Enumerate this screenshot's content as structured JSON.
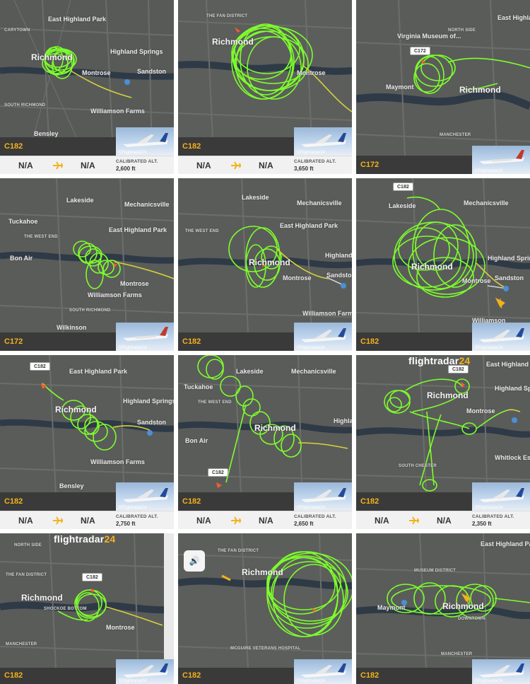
{
  "tiles": [
    {
      "aircraft": "C182",
      "info": {
        "left": "N/A",
        "right": "N/A",
        "alt_label": "CALIBRATED ALT.",
        "alt": "2,600 ft"
      },
      "credit": "©Flightradar24",
      "labels": [
        "East Highland Park",
        "Richmond",
        "Highland Springs",
        "Sandston",
        "Williamson Farms",
        "Montrose",
        "Bensley",
        "CARYTOWN",
        "SOUTH RICHMOND"
      ]
    },
    {
      "aircraft": "C182",
      "info": {
        "left": "N/A",
        "right": "N/A",
        "alt_label": "CALIBRATED ALT.",
        "alt": "3,650 ft"
      },
      "credit": "©Flightradar24",
      "labels": [
        "Richmond",
        "Montrose",
        "THE FAN DISTRICT"
      ]
    },
    {
      "aircraft": "C172",
      "callout": "C172",
      "credit": "©Flightradar24",
      "labels": [
        "Virginia Museum of...",
        "Richmond",
        "Maymont",
        "MANCHESTER",
        "NORTH SIDE",
        "East Highland"
      ]
    },
    {
      "aircraft": "C172",
      "credit": "©Flightradar24",
      "labels": [
        "Lakeside",
        "Mechanicsville",
        "Tuckahoe",
        "THE WEST END",
        "East Highland Park",
        "Montrose",
        "Bon Air",
        "SOUTH RICHMOND",
        "Williamson Farms",
        "Wilkinson"
      ]
    },
    {
      "aircraft": "C182",
      "credit": "©Flightradar24",
      "labels": [
        "Lakeside",
        "Mechanicsville",
        "THE WEST END",
        "East Highland Park",
        "Richmond",
        "Highland Springs",
        "Sandston",
        "Montrose",
        "Williamson Farms"
      ]
    },
    {
      "aircraft": "C182",
      "callout": "C182",
      "credit": "©Flightradar24",
      "labels": [
        "Lakeside",
        "Mechanicsville",
        "Richmond",
        "Highland Springs",
        "Sandston",
        "Montrose",
        "Williamson"
      ]
    },
    {
      "aircraft": "C182",
      "callout": "C182",
      "info": {
        "left": "N/A",
        "right": "N/A",
        "alt_label": "CALIBRATED ALT.",
        "alt": "2,750 ft"
      },
      "credit": "©Flightradar24",
      "labels": [
        "East Highland Park",
        "Richmond",
        "Highland Springs",
        "Sandston",
        "Williamson Farms",
        "Bensley"
      ]
    },
    {
      "aircraft": "C182",
      "callout": "C182",
      "info": {
        "left": "N/A",
        "right": "N/A",
        "alt_label": "CALIBRATED ALT.",
        "alt": "2,650 ft"
      },
      "credit": "©Flightradar24",
      "labels": [
        "Lakeside",
        "Mechanicsville",
        "Tuckahoe",
        "THE WEST END",
        "Richmond",
        "Highland Springs",
        "Bon Air"
      ]
    },
    {
      "aircraft": "C182",
      "callout": "C182",
      "info": {
        "left": "N/A",
        "right": "N/A",
        "alt_label": "CALIBRATED ALT.",
        "alt": "2,350 ft"
      },
      "credit": "©Flightradar24",
      "logo": "flightradar24",
      "labels": [
        "Richmond",
        "Highland Springs",
        "Montrose",
        "Whitlock Estates",
        "SOUTH CHESTER",
        "East Highland Park"
      ]
    },
    {
      "aircraft": "C182",
      "callout": "C182",
      "credit": "©Flightradar24",
      "logo": "flightradar24",
      "labels": [
        "Richmond",
        "SHOCKOE BOTTOM",
        "Montrose",
        "MANCHESTER",
        "NORTH SIDE",
        "THE FAN DISTRICT"
      ]
    },
    {
      "aircraft": "C182",
      "credit": "©Flightradar24",
      "labels": [
        "Richmond",
        "THE FAN DISTRICT",
        "MCGUIRE VETERANS HOSPITAL"
      ]
    },
    {
      "aircraft": "C182",
      "credit": "©Flightradar24",
      "labels": [
        "East Highland Park",
        "MUSEUM DISTRICT",
        "Maymont",
        "Richmond",
        "DOWNTOWN",
        "MANCHESTER"
      ]
    }
  ]
}
